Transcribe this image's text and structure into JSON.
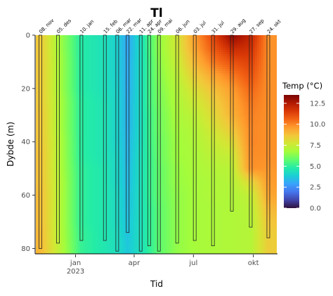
{
  "chart_data": {
    "type": "heatmap",
    "title": "Tl",
    "xlabel": "Tid",
    "ylabel": "Dybde (m)",
    "x_ticks": [
      {
        "date": "2023-01-01",
        "label": "jan",
        "sublabel": "2023"
      },
      {
        "date": "2023-04-01",
        "label": "apr",
        "sublabel": ""
      },
      {
        "date": "2023-07-01",
        "label": "jul",
        "sublabel": ""
      },
      {
        "date": "2023-10-01",
        "label": "okt",
        "sublabel": ""
      }
    ],
    "xlim": [
      "2022-11-01",
      "2023-11-06"
    ],
    "y_ticks": [
      0,
      20,
      40,
      60,
      80
    ],
    "ylim": [
      0,
      82
    ],
    "y_reversed": true,
    "legend": {
      "title": "Temp (°C)",
      "ticks": [
        0.0,
        2.5,
        5.0,
        7.5,
        10.0,
        12.5
      ],
      "tick_labels": [
        "0.0",
        "2.5",
        "5.0",
        "7.5",
        "10.0",
        "12.5"
      ],
      "range": [
        0,
        13.5
      ],
      "colors": [
        "#30123b",
        "#4145ab",
        "#4675ed",
        "#39a2fc",
        "#1bcfd4",
        "#24eca6",
        "#61fc6c",
        "#a4fc3b",
        "#d1e834",
        "#f3c63a",
        "#fe9b2d",
        "#f36315",
        "#d93806",
        "#b11901",
        "#7a0403"
      ]
    },
    "sampling_dates": [
      {
        "date": "2022-11-08",
        "label": "08. nov",
        "max_depth": 80
      },
      {
        "date": "2022-12-05",
        "label": "05. des",
        "max_depth": 78
      },
      {
        "date": "2023-01-10",
        "label": "10. jan",
        "max_depth": 77
      },
      {
        "date": "2023-02-15",
        "label": "15. feb",
        "max_depth": 77
      },
      {
        "date": "2023-03-06",
        "label": "06. mar",
        "max_depth": 81
      },
      {
        "date": "2023-03-22",
        "label": "22. mar",
        "max_depth": 74
      },
      {
        "date": "2023-04-11",
        "label": "11. apr",
        "max_depth": 81
      },
      {
        "date": "2023-04-24",
        "label": "24. apr",
        "max_depth": 79
      },
      {
        "date": "2023-05-09",
        "label": "09. mai",
        "max_depth": 81
      },
      {
        "date": "2023-06-06",
        "label": "06. jun",
        "max_depth": 78
      },
      {
        "date": "2023-07-03",
        "label": "03. jul",
        "max_depth": 77
      },
      {
        "date": "2023-07-31",
        "label": "31. jul",
        "max_depth": 79
      },
      {
        "date": "2023-08-29",
        "label": "29. aug",
        "max_depth": 66
      },
      {
        "date": "2023-09-27",
        "label": "27. sep",
        "max_depth": 72
      },
      {
        "date": "2023-10-24",
        "label": "24. okt",
        "max_depth": 76
      }
    ],
    "depths": [
      0,
      5,
      10,
      15,
      20,
      25,
      30,
      35,
      40,
      45,
      50,
      55,
      60,
      65,
      70,
      75,
      80
    ],
    "temperature": [
      [
        8.6,
        8.6,
        8.6,
        8.6,
        8.6,
        8.6,
        8.7,
        8.7,
        8.7,
        8.8,
        8.8,
        8.8,
        8.9,
        8.9,
        8.9,
        9.0,
        9.0
      ],
      [
        6.9,
        6.9,
        7.0,
        7.0,
        7.0,
        7.1,
        7.1,
        7.1,
        7.2,
        7.2,
        7.2,
        7.3,
        7.3,
        7.3,
        7.3,
        7.3,
        7.4
      ],
      [
        4.8,
        4.8,
        4.8,
        4.8,
        4.8,
        4.9,
        4.9,
        4.9,
        4.9,
        4.9,
        5.0,
        5.0,
        5.0,
        5.0,
        5.0,
        5.1,
        5.1
      ],
      [
        4.4,
        4.4,
        4.4,
        4.4,
        4.4,
        4.5,
        4.5,
        4.5,
        4.5,
        4.5,
        4.6,
        4.6,
        4.6,
        4.6,
        4.6,
        4.6,
        4.6
      ],
      [
        3.9,
        3.9,
        3.9,
        3.9,
        4.0,
        4.0,
        4.0,
        4.0,
        4.0,
        4.1,
        4.1,
        4.1,
        4.2,
        4.2,
        4.2,
        4.3,
        4.3
      ],
      [
        3.0,
        3.0,
        3.1,
        3.1,
        3.1,
        3.2,
        3.2,
        3.2,
        3.3,
        3.3,
        3.4,
        3.4,
        3.5,
        3.5,
        3.6,
        3.6,
        3.7
      ],
      [
        4.3,
        4.3,
        4.3,
        4.3,
        4.3,
        4.3,
        4.3,
        4.3,
        4.3,
        4.4,
        4.4,
        4.4,
        4.4,
        4.4,
        4.4,
        4.4,
        4.4
      ],
      [
        5.4,
        5.4,
        5.3,
        5.3,
        5.3,
        5.3,
        5.2,
        5.2,
        5.2,
        5.1,
        5.1,
        5.1,
        5.1,
        5.0,
        5.0,
        5.0,
        5.0
      ],
      [
        6.5,
        6.5,
        6.4,
        6.3,
        6.2,
        6.1,
        6.0,
        6.0,
        5.9,
        5.9,
        5.8,
        5.8,
        5.8,
        5.7,
        5.7,
        5.7,
        5.7
      ],
      [
        7.8,
        7.7,
        7.5,
        7.3,
        7.1,
        7.0,
        6.9,
        6.8,
        6.7,
        6.7,
        6.6,
        6.6,
        6.5,
        6.5,
        6.5,
        6.5,
        6.5
      ],
      [
        9.6,
        9.4,
        9.0,
        8.5,
        8.0,
        7.6,
        7.3,
        7.1,
        7.0,
        6.9,
        6.9,
        6.8,
        6.8,
        6.8,
        6.8,
        6.8,
        6.8
      ],
      [
        11.2,
        10.8,
        10.2,
        9.4,
        8.8,
        8.4,
        8.1,
        7.8,
        7.5,
        7.3,
        7.1,
        7.0,
        7.0,
        6.9,
        6.9,
        6.9,
        6.9
      ],
      [
        13.2,
        12.0,
        11.0,
        10.2,
        9.6,
        9.3,
        9.1,
        8.6,
        8.0,
        7.5,
        7.2,
        7.1,
        7.0,
        7.0,
        7.0,
        7.0,
        7.0
      ],
      [
        12.2,
        11.8,
        11.4,
        11.0,
        10.6,
        10.3,
        10.1,
        10.0,
        10.0,
        9.9,
        9.8,
        8.2,
        7.4,
        7.2,
        7.1,
        7.1,
        7.1
      ],
      [
        9.8,
        9.8,
        9.8,
        9.8,
        9.8,
        9.8,
        9.8,
        9.8,
        9.8,
        9.8,
        9.7,
        9.6,
        9.4,
        9.0,
        8.7,
        8.5,
        8.5
      ]
    ]
  }
}
